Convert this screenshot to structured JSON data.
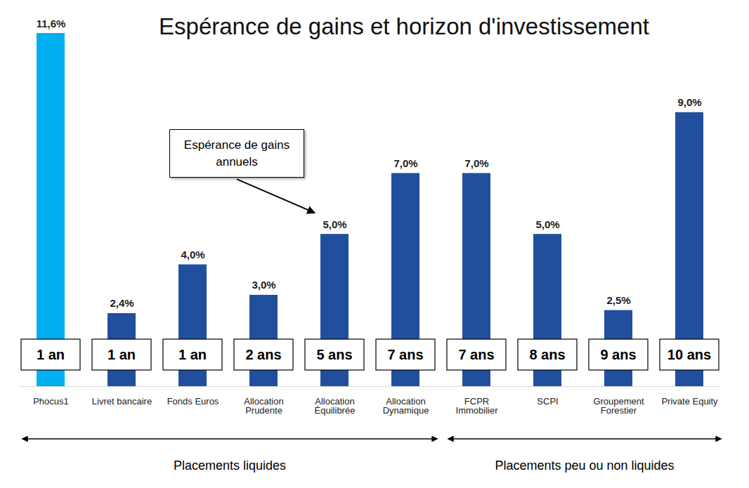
{
  "chart_data": {
    "type": "bar",
    "title": "Espérance de gains et horizon d'investissement",
    "categories": [
      "Phocus1",
      "Livret bancaire",
      "Fonds Euros",
      "Allocation\nPrudente",
      "Allocation\nÉquilibrée",
      "Allocation\nDynamique",
      "FCPR\nImmobilier",
      "SCPI",
      "Groupement\nForestier",
      "Private Equity"
    ],
    "values": [
      11.6,
      2.4,
      4.0,
      3.0,
      5.0,
      7.0,
      7.0,
      5.0,
      2.5,
      9.0
    ],
    "value_labels": [
      "11,6%",
      "2,4%",
      "4,0%",
      "3,0%",
      "5,0%",
      "7,0%",
      "7,0%",
      "5,0%",
      "2,5%",
      "9,0%"
    ],
    "colors": [
      "#00B0F0",
      "#214F9E",
      "#214F9E",
      "#214F9E",
      "#214F9E",
      "#214F9E",
      "#214F9E",
      "#214F9E",
      "#214F9E",
      "#214F9E"
    ],
    "horizons": [
      "1 an",
      "1 an",
      "1 an",
      "2 ans",
      "5 ans",
      "7 ans",
      "7 ans",
      "8 ans",
      "9 ans",
      "10 ans"
    ],
    "annotation": {
      "text": "Espérance de gains annuels",
      "category": "Allocation\nÉquilibrée"
    },
    "groups": [
      {
        "label": "Placements liquides",
        "from": "Phocus1",
        "to": "Allocation\nDynamique"
      },
      {
        "label": "Placements peu ou non liquides",
        "from": "FCPR\nImmobilier",
        "to": "Private Equity"
      }
    ],
    "ylim": [
      0,
      11.6
    ],
    "yticks": [],
    "tick_labels": "x",
    "data_labels": true,
    "grid": false
  }
}
